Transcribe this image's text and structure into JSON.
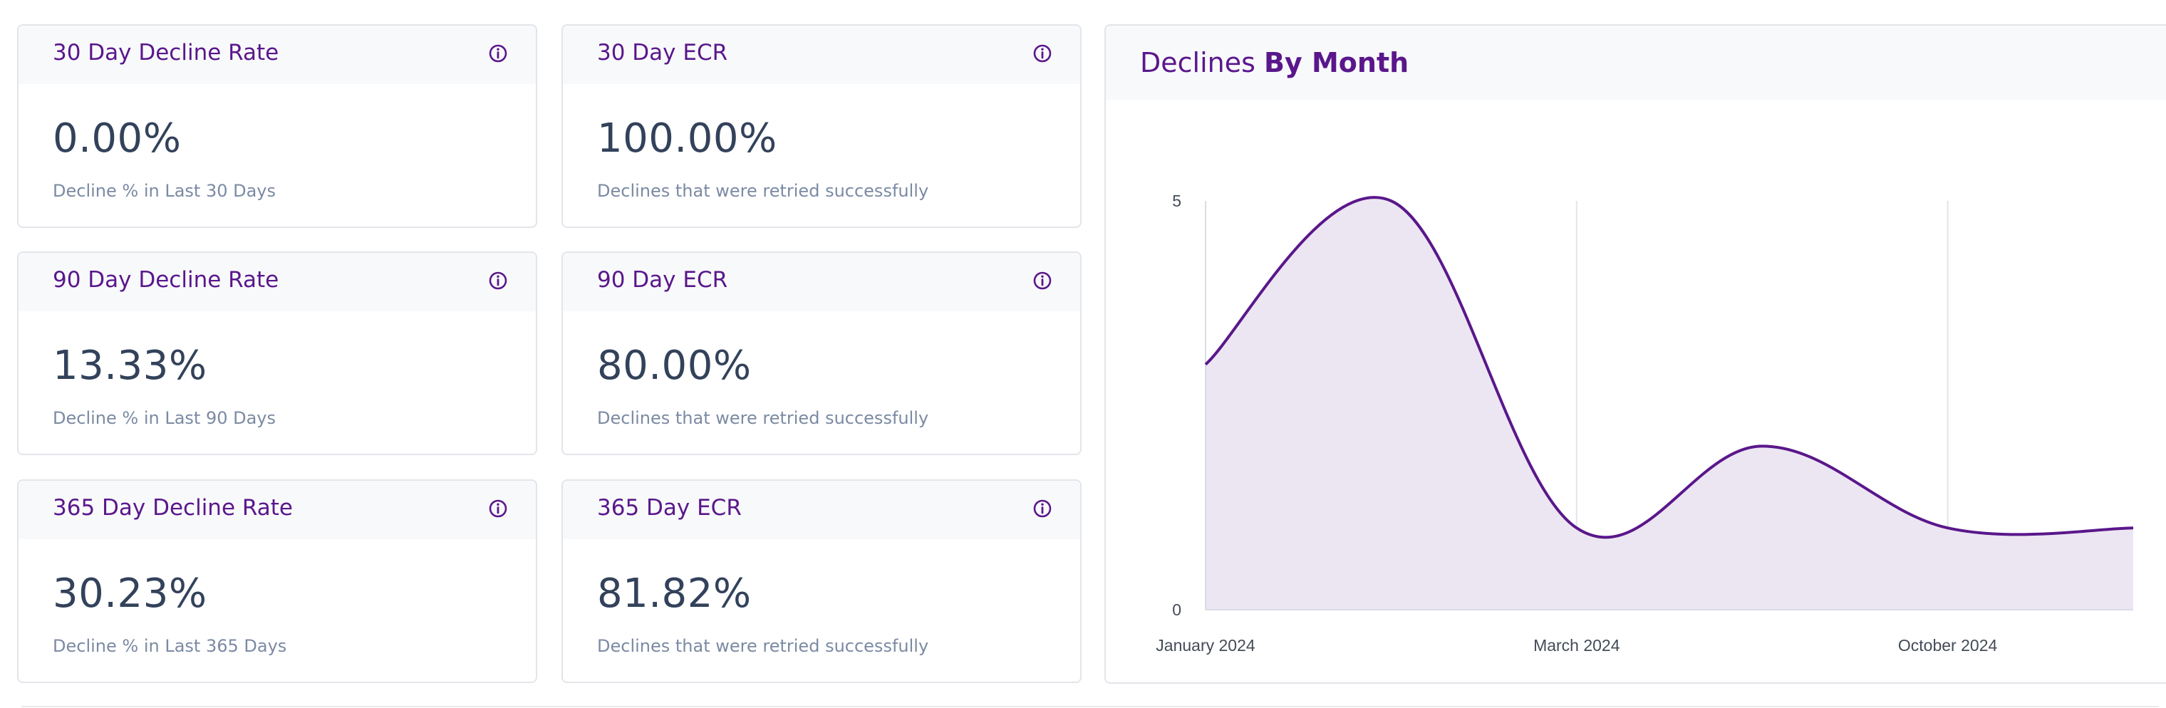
{
  "cards": [
    {
      "title": "30 Day Decline Rate",
      "value": "0.00%",
      "subtitle": "Decline % in Last 30 Days"
    },
    {
      "title": "30 Day ECR",
      "value": "100.00%",
      "subtitle": "Declines that were retried successfully"
    },
    {
      "title": "90 Day Decline Rate",
      "value": "13.33%",
      "subtitle": "Decline % in Last 90 Days"
    },
    {
      "title": "90 Day ECR",
      "value": "80.00%",
      "subtitle": "Declines that were retried successfully"
    },
    {
      "title": "365 Day Decline Rate",
      "value": "30.23%",
      "subtitle": "Decline % in Last 365 Days"
    },
    {
      "title": "365 Day ECR",
      "value": "81.82%",
      "subtitle": "Declines that were retried successfully"
    }
  ],
  "chart": {
    "title_prefix": "Declines",
    "title_bold": "By Month"
  },
  "chart_data": {
    "type": "area",
    "x_labels": [
      "January 2024",
      "March 2024",
      "October 2024"
    ],
    "y_ticks": [
      0,
      5
    ],
    "ylim": [
      0,
      5
    ],
    "points": [
      3,
      5,
      1,
      2,
      1,
      1
    ],
    "series_color": "#5a178b",
    "fill_color": "#ece6f2"
  },
  "colors": {
    "accent": "#5a178b",
    "value_text": "#33425b",
    "subtitle_text": "#7b8aa3"
  }
}
